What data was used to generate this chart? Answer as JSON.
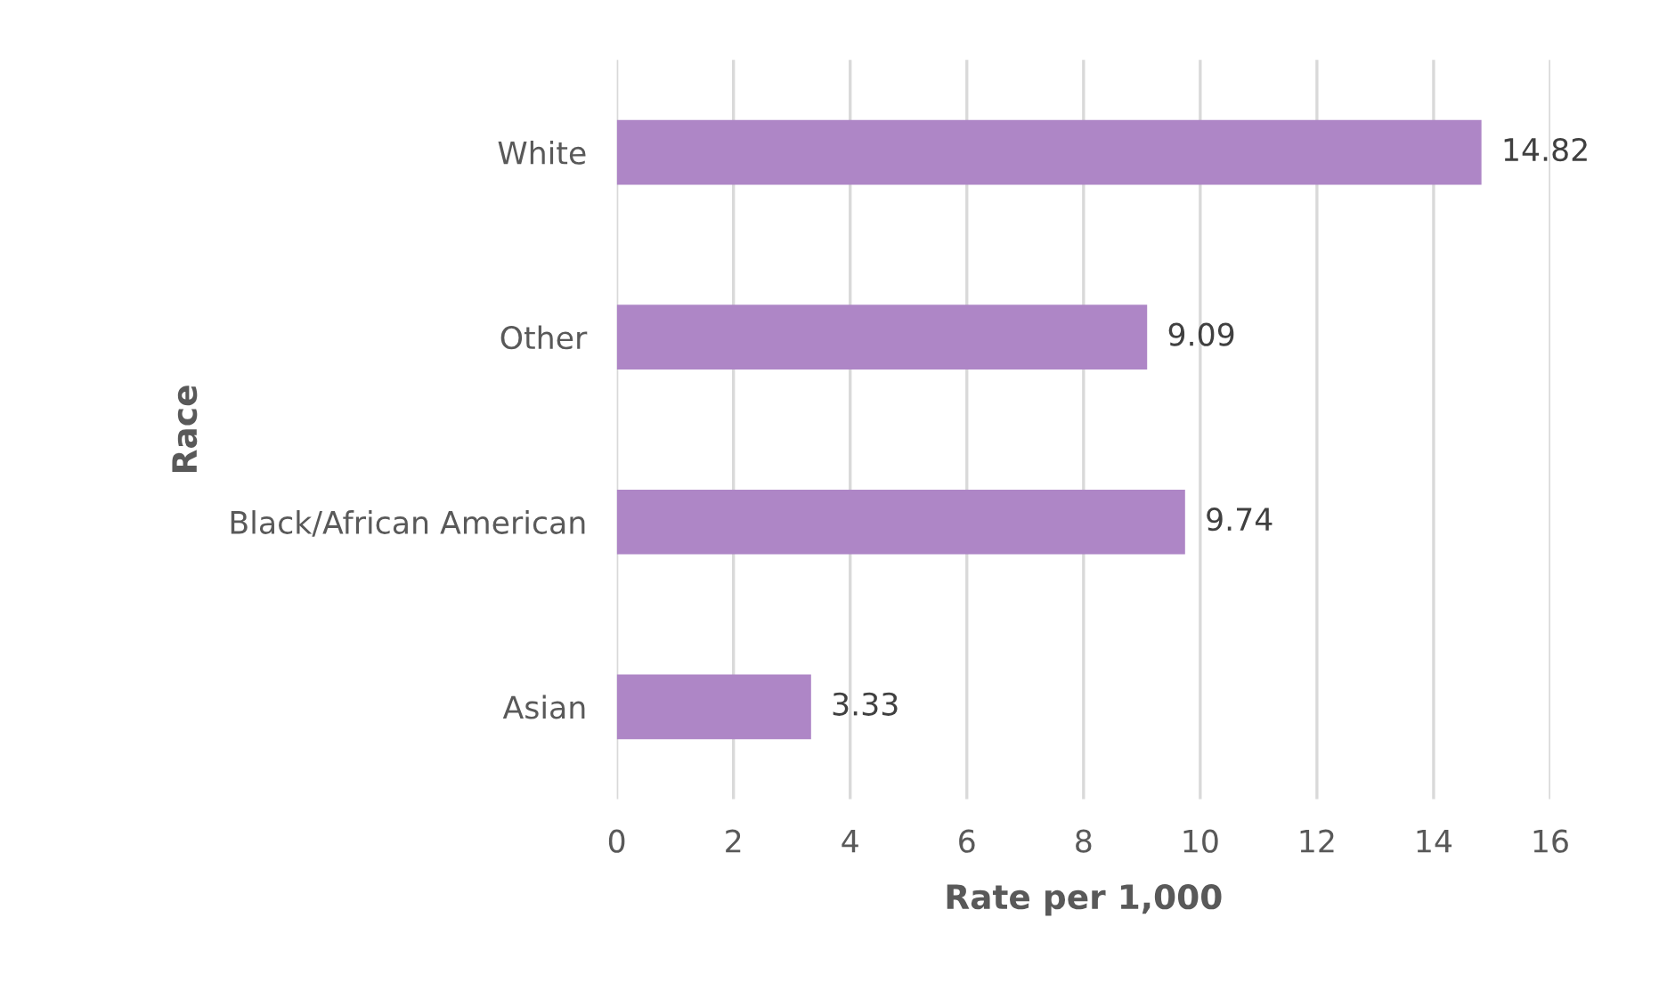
{
  "chart_data": {
    "type": "bar",
    "orientation": "horizontal",
    "xlabel": "Rate per 1,000",
    "ylabel": "Race",
    "categories": [
      "White",
      "Other",
      "Black/African American",
      "Asian"
    ],
    "values": [
      14.82,
      9.09,
      9.74,
      3.33
    ],
    "color": "#ae86c6",
    "xlim": [
      0,
      16
    ],
    "xticks": [
      0,
      2,
      4,
      6,
      8,
      10,
      12,
      14,
      16
    ],
    "grid": "x",
    "data_labels": true
  }
}
